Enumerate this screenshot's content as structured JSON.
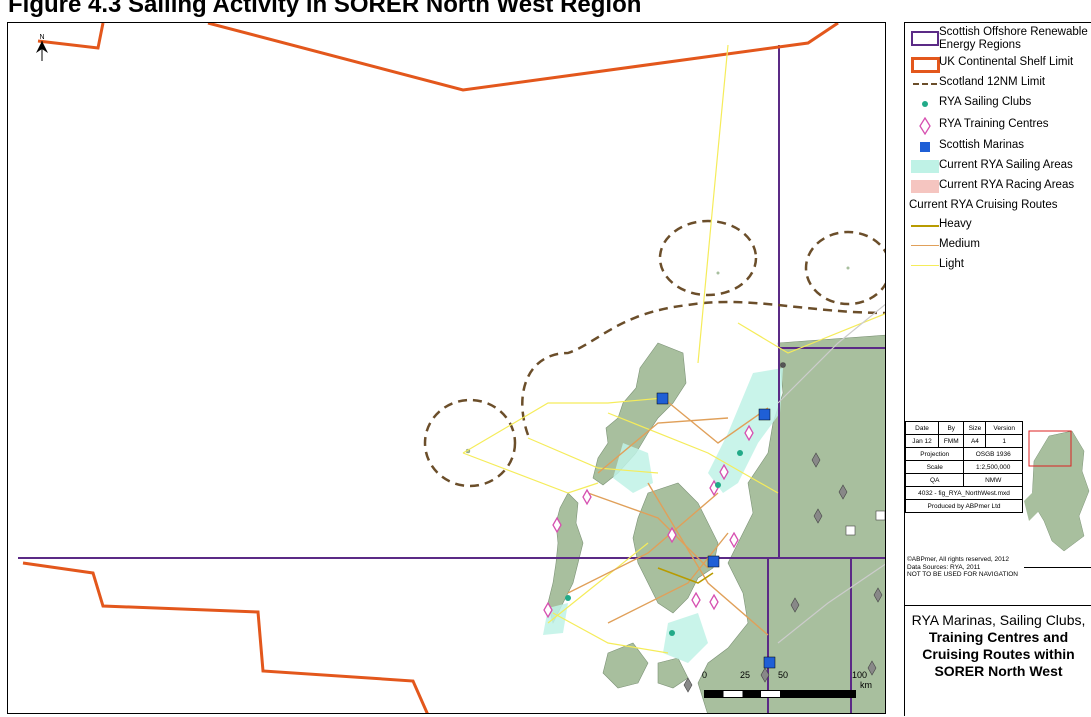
{
  "caption": "Figure 4.3 Sailing Activity in SORER North West Region",
  "north": "N",
  "legend": {
    "items": [
      {
        "label": "Scottish Offshore Renewable Energy Regions",
        "color": "#5b2a86"
      },
      {
        "label": "UK Continental Shelf Limit",
        "color": "#e3571c"
      },
      {
        "label": "Scotland 12NM Limit",
        "color": "#6b4e2a"
      },
      {
        "label": "RYA Sailing Clubs",
        "color": "#22aa88"
      },
      {
        "label": "RYA Training Centres",
        "color": "#d64fb0"
      },
      {
        "label": "Scottish Marinas",
        "color": "#1f5fd6"
      },
      {
        "label": "Current RYA Sailing Areas",
        "color": "#bff2e6"
      },
      {
        "label": "Current RYA Racing Areas",
        "color": "#f5c5c0"
      }
    ],
    "routes_heading": "Current RYA Cruising Routes",
    "routes": [
      {
        "label": "Heavy",
        "color": "#b89b00"
      },
      {
        "label": "Medium",
        "color": "#e0a05a"
      },
      {
        "label": "Light",
        "color": "#f5ec5a"
      }
    ]
  },
  "meta": {
    "headers": [
      "Date",
      "By",
      "Size",
      "Version"
    ],
    "values": [
      "Jan 12",
      "FMM",
      "A4",
      "1"
    ],
    "projection_label": "Projection",
    "projection": "OSGB 1936",
    "scale_label": "Scale",
    "scale": "1:2,500,000",
    "qa_label": "QA",
    "qa": "NMW",
    "file": "4032 - fig_RYA_NorthWest.mxd",
    "produced": "Produced by ABPmer Ltd"
  },
  "copyright": [
    "©ABPmer, All rights reserved, 2012",
    "Data Sources: RYA, 2011",
    "NOT TO BE USED FOR NAVIGATION"
  ],
  "title": [
    "RYA Marinas, Sailing Clubs,",
    "Training Centres and",
    "Cruising Routes within",
    "SORER North West"
  ],
  "scale": {
    "ticks": [
      "0",
      "25",
      "50",
      "100"
    ],
    "unit": "km"
  }
}
